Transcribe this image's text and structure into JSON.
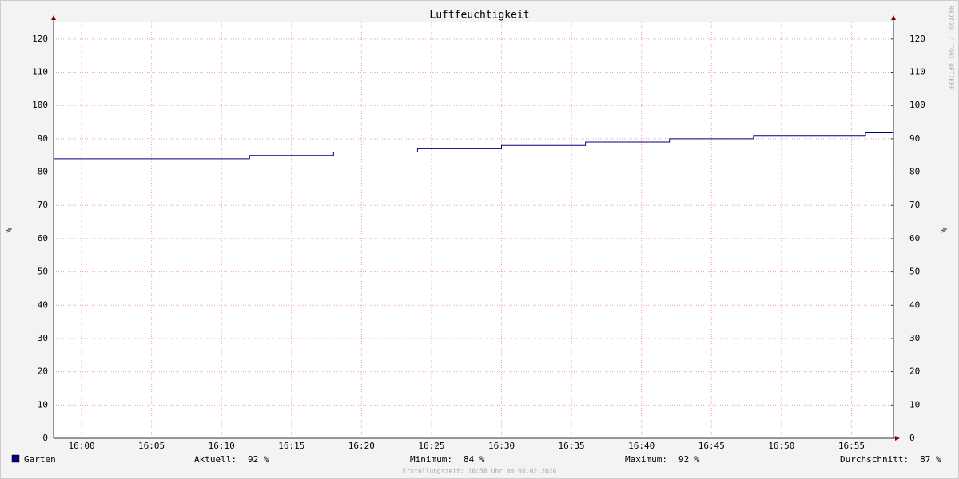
{
  "chart_data": {
    "type": "step",
    "title": "Luftfeuchtigkeit",
    "y_label": "%",
    "y2_label": "%",
    "watermark": "RRDTOOL / TOBI OETIKER",
    "footer": "Erstellungszeit: 16:58 Uhr am 08.02.2026",
    "x": [
      "15:58",
      "16:12",
      "16:18",
      "16:24",
      "16:30",
      "16:36",
      "16:42",
      "16:48",
      "16:56",
      "16:58"
    ],
    "series": [
      {
        "name": "Garten",
        "color": "#000080",
        "values": [
          84,
          85,
          86,
          87,
          88,
          89,
          90,
          91,
          92,
          92
        ]
      }
    ],
    "xlim": [
      "15:58",
      "16:58"
    ],
    "xticks": [
      "16:00",
      "16:05",
      "16:10",
      "16:15",
      "16:20",
      "16:25",
      "16:30",
      "16:35",
      "16:40",
      "16:45",
      "16:50",
      "16:55"
    ],
    "ylim": [
      0,
      125
    ],
    "yticks": [
      0,
      10,
      20,
      30,
      40,
      50,
      60,
      70,
      80,
      90,
      100,
      110,
      120
    ],
    "y2lim": [
      0,
      125
    ],
    "y2ticks": [
      0,
      10,
      20,
      30,
      40,
      50,
      60,
      70,
      80,
      90,
      100,
      110,
      120
    ],
    "grid": true,
    "stats": [
      {
        "label": "Aktuell:",
        "text": "92 %"
      },
      {
        "label": "Minimum:",
        "text": "84 %"
      },
      {
        "label": "Maximum:",
        "text": "92 %"
      },
      {
        "label": "Durchschnitt:",
        "text": "87 %"
      }
    ]
  }
}
